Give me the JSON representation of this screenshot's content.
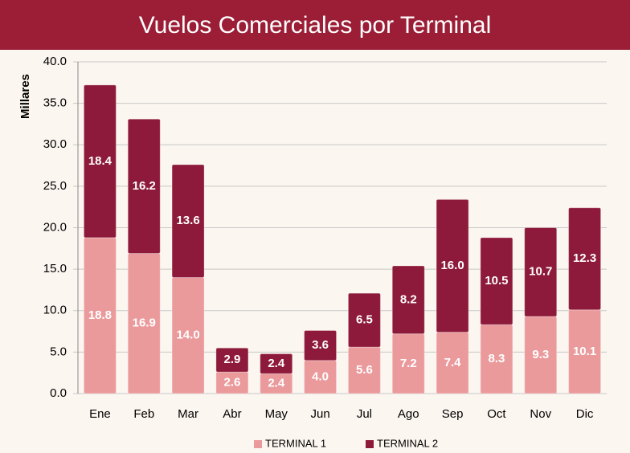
{
  "chart_data": {
    "type": "stacked_bar",
    "title": "Vuelos Comerciales por Terminal",
    "y_label": "Millares",
    "categories": [
      "Ene",
      "Feb",
      "Mar",
      "Abr",
      "May",
      "Jun",
      "Jul",
      "Ago",
      "Sep",
      "Oct",
      "Nov",
      "Dic"
    ],
    "series": [
      {
        "name": "TERMINAL 1",
        "color": "#eb9a9c",
        "values": [
          18.8,
          16.9,
          14.0,
          2.6,
          2.4,
          4.0,
          5.6,
          7.2,
          7.4,
          8.3,
          9.3,
          10.1
        ],
        "value_labels": [
          "18.8",
          "16.9",
          "14.0",
          "2.6",
          "2.4",
          "4.0",
          "5.6",
          "7.2",
          "7.4",
          "8.3",
          "9.3",
          "10.1"
        ]
      },
      {
        "name": "TERMINAL 2",
        "color": "#8e1a3b",
        "values": [
          18.4,
          16.2,
          13.6,
          2.9,
          2.4,
          3.6,
          6.5,
          8.2,
          16.0,
          10.5,
          10.7,
          12.3
        ],
        "value_labels": [
          "18.4",
          "16.2",
          "13.6",
          "2.9",
          "2.4",
          "3.6",
          "6.5",
          "8.2",
          "16.0",
          "10.5",
          "10.7",
          "12.3"
        ]
      }
    ],
    "ylim": [
      0,
      40
    ],
    "yticks": [
      {
        "value": 0,
        "label": "0.0"
      },
      {
        "value": 5,
        "label": "5.0"
      },
      {
        "value": 10,
        "label": "10.0"
      },
      {
        "value": 15,
        "label": "15.0"
      },
      {
        "value": 20,
        "label": "20.0"
      },
      {
        "value": 25,
        "label": "25.0"
      },
      {
        "value": 30,
        "label": "30.0"
      },
      {
        "value": 35,
        "label": "35.0"
      },
      {
        "value": 40,
        "label": "40.0"
      }
    ],
    "grid": true,
    "legend": "bottom"
  }
}
